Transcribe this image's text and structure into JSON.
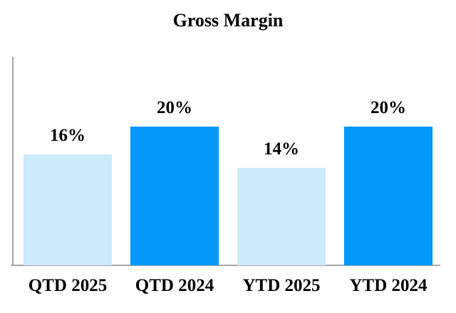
{
  "chart_data": {
    "type": "bar",
    "title": "Gross Margin",
    "categories": [
      "QTD 2025",
      "QTD 2024",
      "YTD 2025",
      "YTD 2024"
    ],
    "values": [
      16,
      20,
      14,
      20
    ],
    "value_labels": [
      "16%",
      "20%",
      "14%",
      "20%"
    ],
    "xlabel": "",
    "ylabel": "",
    "ylim": [
      0,
      30
    ],
    "grid": false,
    "legend": "none",
    "bar_colors": [
      "#CDEBFC",
      "#0598FB",
      "#CDEBFC",
      "#0598FB"
    ],
    "axis_color": "#A6A6A6",
    "text_color": "#000000"
  }
}
